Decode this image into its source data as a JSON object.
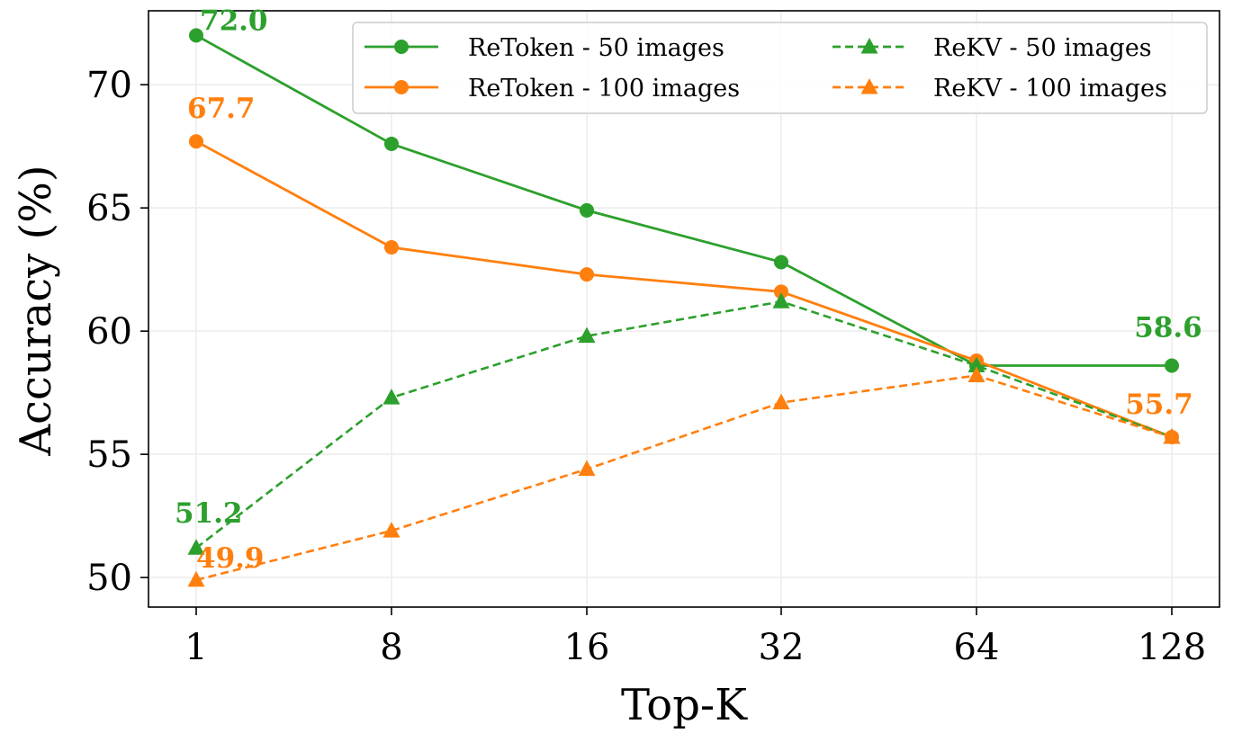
{
  "chart_data": {
    "type": "line",
    "xlabel": "Top-K",
    "ylabel": "Accuracy (%)",
    "x_ticks": [
      "1",
      "8",
      "16",
      "32",
      "64",
      "128"
    ],
    "y_ticks": [
      50,
      55,
      60,
      65,
      70
    ],
    "ylim": [
      48.8,
      73.0
    ],
    "grid": true,
    "legend_position": "top-right",
    "series": [
      {
        "name": "ReToken - 50 images",
        "color": "#2ca02c",
        "dash": "solid",
        "marker": "circle",
        "values": [
          72.0,
          67.6,
          64.9,
          62.8,
          58.6,
          58.6
        ],
        "labels": [
          {
            "index": 0,
            "text": "72.0"
          },
          {
            "index": 5,
            "text": "58.6"
          }
        ]
      },
      {
        "name": "ReToken - 100 images",
        "color": "#ff7f0e",
        "dash": "solid",
        "marker": "circle",
        "values": [
          67.7,
          63.4,
          62.3,
          61.6,
          58.8,
          55.7
        ],
        "labels": [
          {
            "index": 0,
            "text": "67.7"
          },
          {
            "index": 5,
            "text": "55.7"
          }
        ]
      },
      {
        "name": "ReKV - 50 images",
        "color": "#2ca02c",
        "dash": "dashed",
        "marker": "triangle",
        "values": [
          51.2,
          57.3,
          59.8,
          61.2,
          58.6,
          55.7
        ],
        "labels": [
          {
            "index": 0,
            "text": "51.2"
          }
        ]
      },
      {
        "name": "ReKV - 100 images",
        "color": "#ff7f0e",
        "dash": "dashed",
        "marker": "triangle",
        "values": [
          49.9,
          51.9,
          54.4,
          57.1,
          58.2,
          55.7
        ],
        "labels": [
          {
            "index": 0,
            "text": "49.9"
          }
        ]
      }
    ]
  }
}
